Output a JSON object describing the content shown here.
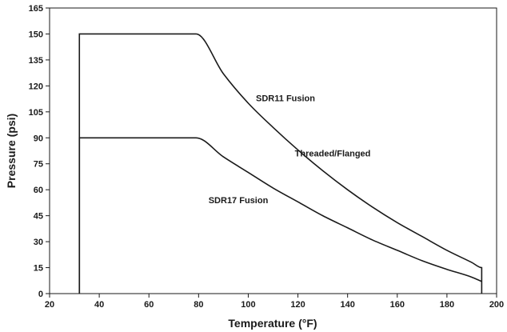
{
  "chart_data": {
    "type": "line",
    "title": "",
    "xlabel": "Temperature (°F)",
    "ylabel": "Pressure (psi)",
    "xlim": [
      20,
      200
    ],
    "ylim": [
      0,
      165
    ],
    "x_ticks": [
      20,
      40,
      60,
      80,
      100,
      120,
      140,
      160,
      180,
      200
    ],
    "y_ticks": [
      0,
      15,
      30,
      45,
      60,
      75,
      90,
      105,
      120,
      135,
      150,
      165
    ],
    "grid": false,
    "legend": "none",
    "series": [
      {
        "x": [
          32,
          32,
          79,
          90,
          100,
          110,
          120,
          130,
          140,
          150,
          160,
          170,
          180,
          190,
          194,
          194
        ],
        "y": [
          0,
          150,
          150,
          127,
          110,
          96,
          83,
          71,
          60,
          50,
          41,
          33,
          25,
          18,
          15,
          0
        ],
        "color": "#1a1a1a"
      },
      {
        "x": [
          32,
          32,
          79,
          90,
          100,
          110,
          120,
          130,
          140,
          150,
          160,
          170,
          180,
          190,
          194
        ],
        "y": [
          0,
          90,
          90,
          79,
          70,
          61,
          53,
          45,
          38,
          31,
          25,
          19,
          14,
          9.5,
          7
        ],
        "color": "#1a1a1a"
      }
    ],
    "annotations": [
      {
        "text": "SDR11 Fusion",
        "x": 115,
        "y": 113
      },
      {
        "text": "Threaded/Flanged",
        "x": 134,
        "y": 81
      },
      {
        "text": "SDR17 Fusion",
        "x": 96,
        "y": 54
      }
    ]
  }
}
